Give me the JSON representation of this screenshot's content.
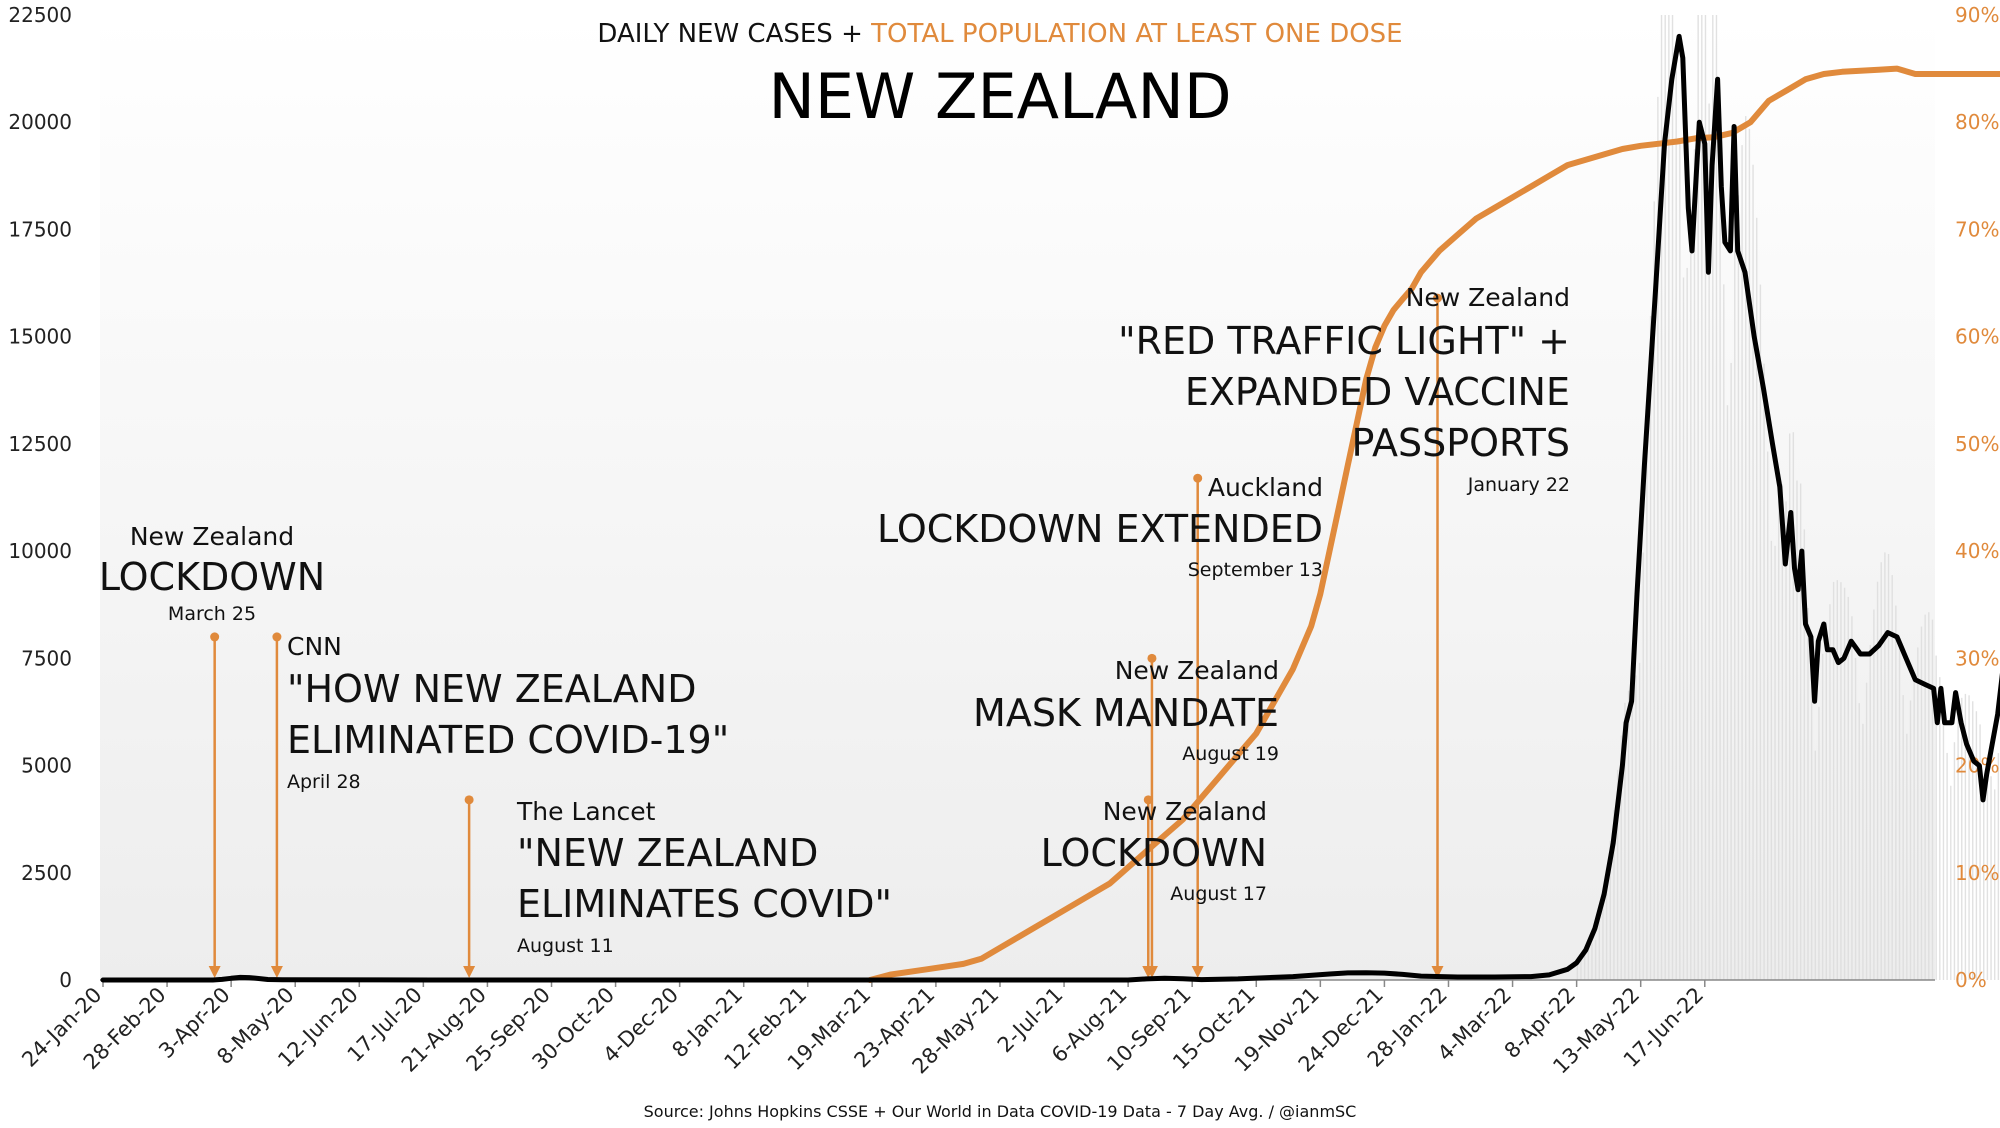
{
  "chart_data": {
    "type": "line",
    "subtitle_part1": "DAILY NEW CASES + ",
    "subtitle_part2": "TOTAL POPULATION AT LEAST ONE DOSE",
    "title": "NEW ZEALAND",
    "source": "Source: Johns Hopkins CSSE + Our World in Data COVID-19 Data - 7 Day Avg. / @ianmSC",
    "colors": {
      "cases": "#000000",
      "vaccine": "#e08a3c",
      "raw_bars": "#dcdcdc",
      "annotation": "#e08a3c"
    },
    "x_ticks": [
      "24-Jan-20",
      "28-Feb-20",
      "3-Apr-20",
      "8-May-20",
      "12-Jun-20",
      "17-Jul-20",
      "21-Aug-20",
      "25-Sep-20",
      "30-Oct-20",
      "4-Dec-20",
      "8-Jan-21",
      "12-Feb-21",
      "19-Mar-21",
      "23-Apr-21",
      "28-May-21",
      "2-Jul-21",
      "6-Aug-21",
      "10-Sep-21",
      "15-Oct-21",
      "19-Nov-21",
      "24-Dec-21",
      "28-Jan-22",
      "4-Mar-22",
      "8-Apr-22",
      "13-May-22",
      "17-Jun-22"
    ],
    "y_left": {
      "ticks": [
        "0",
        "2500",
        "5000",
        "7500",
        "10000",
        "12500",
        "15000",
        "17500",
        "20000",
        "22500"
      ],
      "ylim": [
        0,
        22500
      ]
    },
    "y_right": {
      "ticks": [
        "0%",
        "10%",
        "20%",
        "30%",
        "40%",
        "50%",
        "60%",
        "70%",
        "80%",
        "90%"
      ],
      "ylim": [
        0,
        90
      ]
    },
    "series": [
      {
        "key": "cases",
        "points": [
          [
            0,
            0
          ],
          [
            60,
            0
          ],
          [
            65,
            15
          ],
          [
            70,
            40
          ],
          [
            75,
            60
          ],
          [
            80,
            55
          ],
          [
            85,
            35
          ],
          [
            90,
            12
          ],
          [
            98,
            4
          ],
          [
            180,
            0
          ],
          [
            560,
            0
          ],
          [
            570,
            25
          ],
          [
            580,
            40
          ],
          [
            590,
            30
          ],
          [
            600,
            10
          ],
          [
            620,
            25
          ],
          [
            650,
            80
          ],
          [
            670,
            140
          ],
          [
            680,
            165
          ],
          [
            690,
            170
          ],
          [
            700,
            160
          ],
          [
            710,
            130
          ],
          [
            720,
            90
          ],
          [
            740,
            70
          ],
          [
            760,
            70
          ],
          [
            780,
            80
          ],
          [
            790,
            120
          ],
          [
            800,
            250
          ],
          [
            805,
            400
          ],
          [
            810,
            700
          ],
          [
            815,
            1200
          ],
          [
            820,
            2000
          ],
          [
            825,
            3200
          ],
          [
            830,
            5000
          ],
          [
            832,
            6000
          ],
          [
            835,
            6500
          ],
          [
            838,
            9000
          ],
          [
            842,
            12000
          ],
          [
            848,
            16000
          ],
          [
            853,
            19500
          ],
          [
            857,
            21000
          ],
          [
            861,
            22000
          ],
          [
            863,
            21500
          ],
          [
            866,
            18000
          ],
          [
            868,
            17000
          ],
          [
            870,
            18500
          ],
          [
            872,
            20000
          ],
          [
            875,
            19500
          ],
          [
            877,
            16500
          ],
          [
            879,
            19000
          ],
          [
            882,
            21000
          ],
          [
            884,
            18500
          ],
          [
            886,
            17200
          ],
          [
            889,
            17000
          ],
          [
            891,
            19900
          ],
          [
            893,
            17000
          ],
          [
            897,
            16500
          ],
          [
            902,
            15000
          ],
          [
            907,
            13800
          ],
          [
            912,
            12500
          ],
          [
            916,
            11500
          ],
          [
            919,
            9700
          ],
          [
            922,
            10900
          ],
          [
            924,
            9600
          ],
          [
            926,
            9100
          ],
          [
            928,
            10000
          ],
          [
            930,
            8300
          ],
          [
            933,
            8000
          ],
          [
            935,
            6500
          ],
          [
            937,
            7900
          ],
          [
            940,
            8300
          ],
          [
            942,
            7700
          ],
          [
            945,
            7700
          ],
          [
            948,
            7400
          ],
          [
            951,
            7500
          ],
          [
            955,
            7900
          ],
          [
            960,
            7600
          ],
          [
            965,
            7600
          ],
          [
            970,
            7800
          ],
          [
            975,
            8100
          ],
          [
            980,
            8000
          ],
          [
            985,
            7500
          ],
          [
            990,
            7000
          ],
          [
            995,
            6900
          ],
          [
            1000,
            6800
          ],
          [
            1002,
            6000
          ],
          [
            1004,
            6800
          ],
          [
            1006,
            6000
          ],
          [
            1010,
            6000
          ],
          [
            1012,
            6700
          ],
          [
            1015,
            6000
          ],
          [
            1018,
            5500
          ],
          [
            1022,
            5100
          ],
          [
            1025,
            5000
          ],
          [
            1027,
            4200
          ],
          [
            1029,
            4800
          ],
          [
            1032,
            5500
          ],
          [
            1035,
            6200
          ],
          [
            1038,
            7300
          ],
          [
            1040,
            7100
          ],
          [
            1043,
            7300
          ],
          [
            1045,
            6300
          ],
          [
            1047,
            9000
          ],
          [
            1049,
            9600
          ]
        ]
      },
      {
        "key": "vaccine",
        "points": [
          [
            419,
            0
          ],
          [
            430,
            0.5
          ],
          [
            450,
            1
          ],
          [
            470,
            1.5
          ],
          [
            480,
            2
          ],
          [
            490,
            3
          ],
          [
            500,
            4
          ],
          [
            510,
            5
          ],
          [
            520,
            6
          ],
          [
            530,
            7
          ],
          [
            540,
            8
          ],
          [
            550,
            9
          ],
          [
            560,
            10.5
          ],
          [
            570,
            12
          ],
          [
            580,
            13.5
          ],
          [
            590,
            15
          ],
          [
            600,
            17
          ],
          [
            610,
            19
          ],
          [
            620,
            21
          ],
          [
            630,
            23
          ],
          [
            640,
            26
          ],
          [
            650,
            29
          ],
          [
            660,
            33
          ],
          [
            665,
            36
          ],
          [
            670,
            40
          ],
          [
            675,
            44
          ],
          [
            680,
            48
          ],
          [
            685,
            52
          ],
          [
            690,
            56
          ],
          [
            695,
            59
          ],
          [
            700,
            61
          ],
          [
            705,
            62.5
          ],
          [
            710,
            63.5
          ],
          [
            715,
            64.5
          ],
          [
            720,
            66
          ],
          [
            730,
            68
          ],
          [
            740,
            69.5
          ],
          [
            750,
            71
          ],
          [
            760,
            72
          ],
          [
            770,
            73
          ],
          [
            780,
            74
          ],
          [
            790,
            75
          ],
          [
            800,
            76
          ],
          [
            810,
            76.5
          ],
          [
            820,
            77
          ],
          [
            830,
            77.5
          ],
          [
            840,
            77.8
          ],
          [
            850,
            78
          ],
          [
            860,
            78.2
          ],
          [
            870,
            78.5
          ],
          [
            880,
            78.6
          ],
          [
            890,
            79
          ],
          [
            900,
            80
          ],
          [
            910,
            82
          ],
          [
            920,
            83
          ],
          [
            930,
            84
          ],
          [
            940,
            84.5
          ],
          [
            950,
            84.7
          ],
          [
            960,
            84.8
          ],
          [
            970,
            84.9
          ],
          [
            980,
            85
          ],
          [
            990,
            84.5
          ],
          [
            1000,
            84.5
          ],
          [
            1050,
            84.5
          ]
        ]
      }
    ],
    "annotations": [
      {
        "key": "a1",
        "day": 61,
        "line_top": 8000,
        "small": "New Zealand",
        "big": [
          "LOCKDOWN"
        ],
        "date": "March 25"
      },
      {
        "key": "a2",
        "day": 95,
        "line_top": 8000,
        "small": "CNN",
        "big": [
          "\"HOW NEW ZEALAND",
          "ELIMINATED COVID-19\""
        ],
        "date": "April 28"
      },
      {
        "key": "a3",
        "day": 200,
        "line_top": 4200,
        "small": "The Lancet",
        "big": [
          "\"NEW ZEALAND",
          "ELIMINATES COVID\""
        ],
        "date": "August 11"
      },
      {
        "key": "a4",
        "day": 571,
        "line_top": 4200,
        "small": "New Zealand",
        "big": [
          "LOCKDOWN"
        ],
        "date": "August 17"
      },
      {
        "key": "a5",
        "day": 573,
        "line_top": 7500,
        "small": "New Zealand",
        "big": [
          "MASK MANDATE"
        ],
        "date": "August 19"
      },
      {
        "key": "a6",
        "day": 598,
        "line_top": 11700,
        "small": "Auckland",
        "big": [
          "LOCKDOWN EXTENDED"
        ],
        "date": "September 13"
      },
      {
        "key": "a7",
        "day": 729,
        "line_top": 15900,
        "small": "New Zealand",
        "big": [
          "\"RED TRAFFIC LIGHT\" +",
          "EXPANDED VACCINE",
          "PASSPORTS"
        ],
        "date": "January 22"
      }
    ]
  }
}
